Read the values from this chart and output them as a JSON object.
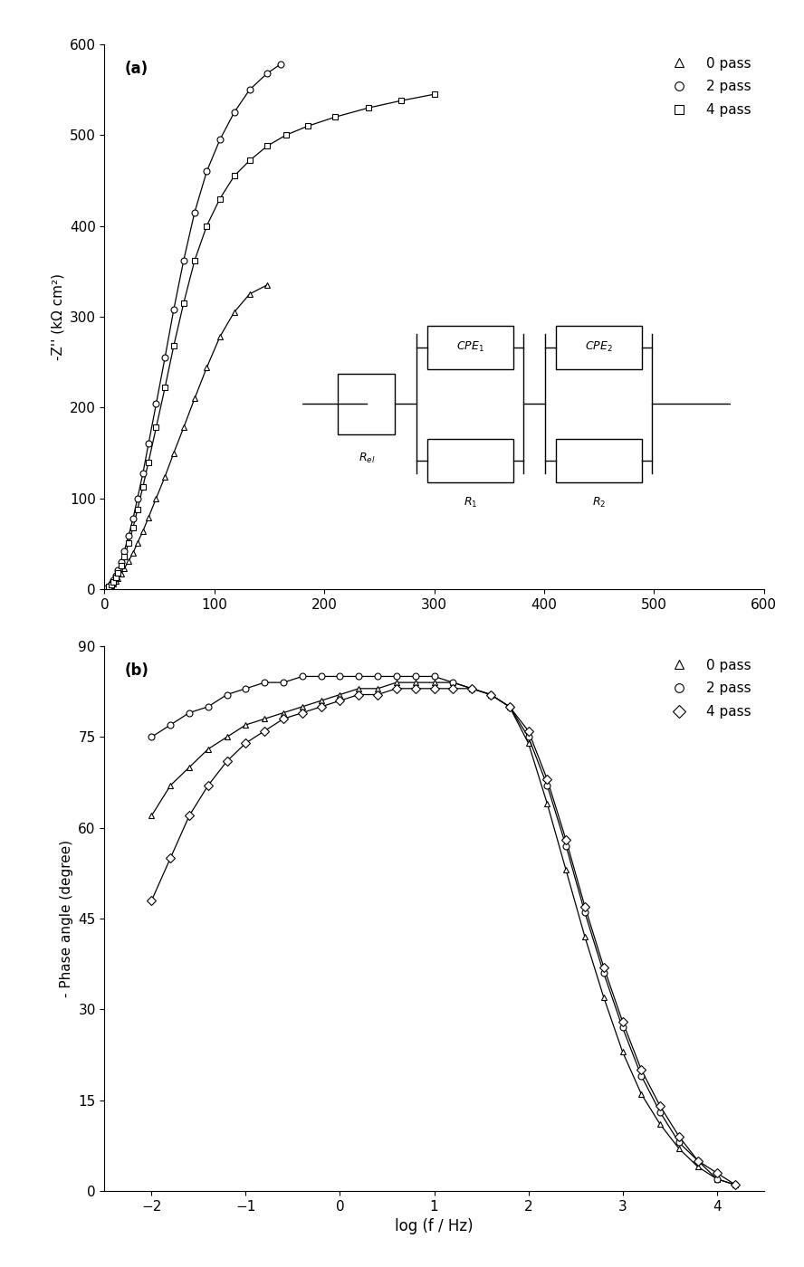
{
  "panel_a": {
    "title": "(a)",
    "ylabel": "-Z'' (kΩ cm²)",
    "xlim": [
      0,
      600
    ],
    "ylim": [
      0,
      600
    ],
    "xticks": [
      0,
      100,
      200,
      300,
      400,
      500,
      600
    ],
    "yticks": [
      0,
      100,
      200,
      300,
      400,
      500,
      600
    ],
    "series": [
      {
        "label": "0 pass",
        "marker": "^",
        "x": [
          0,
          2,
          4,
          6,
          8,
          10,
          12,
          15,
          18,
          22,
          26,
          30,
          35,
          40,
          47,
          55,
          63,
          72,
          82,
          93,
          105,
          118,
          132,
          148
        ],
        "y": [
          0,
          1,
          2,
          4,
          6,
          9,
          12,
          17,
          23,
          31,
          40,
          51,
          64,
          79,
          100,
          124,
          150,
          178,
          210,
          244,
          278,
          305,
          325,
          335
        ]
      },
      {
        "label": "2 pass",
        "marker": "o",
        "x": [
          0,
          2,
          4,
          6,
          8,
          10,
          12,
          15,
          18,
          22,
          26,
          30,
          35,
          40,
          47,
          55,
          63,
          72,
          82,
          93,
          105,
          118,
          132,
          148,
          160
        ],
        "y": [
          0,
          1,
          3,
          6,
          10,
          15,
          21,
          30,
          42,
          59,
          78,
          100,
          128,
          160,
          204,
          255,
          308,
          362,
          415,
          460,
          495,
          525,
          550,
          568,
          578
        ]
      },
      {
        "label": "4 pass",
        "marker": "s",
        "x": [
          0,
          2,
          4,
          6,
          8,
          10,
          12,
          15,
          18,
          22,
          26,
          30,
          35,
          40,
          47,
          55,
          63,
          72,
          82,
          93,
          105,
          118,
          132,
          148,
          165,
          185,
          210,
          240,
          270,
          300
        ],
        "y": [
          0,
          1,
          3,
          5,
          8,
          13,
          18,
          26,
          36,
          51,
          68,
          88,
          113,
          140,
          178,
          222,
          268,
          315,
          362,
          400,
          430,
          455,
          472,
          488,
          500,
          510,
          520,
          530,
          538,
          545
        ]
      }
    ]
  },
  "panel_b": {
    "title": "(b)",
    "xlabel": "log (f / Hz)",
    "ylabel": "- Phase angle (degree)",
    "xlim": [
      -2.5,
      4.5
    ],
    "ylim": [
      0,
      90
    ],
    "xticks": [
      -2,
      -1,
      0,
      1,
      2,
      3,
      4
    ],
    "yticks": [
      0,
      15,
      30,
      45,
      60,
      75,
      90
    ],
    "series": [
      {
        "label": "0 pass",
        "marker": "^",
        "x": [
          -2.0,
          -1.8,
          -1.6,
          -1.4,
          -1.2,
          -1.0,
          -0.8,
          -0.6,
          -0.4,
          -0.2,
          0.0,
          0.2,
          0.4,
          0.6,
          0.8,
          1.0,
          1.2,
          1.4,
          1.6,
          1.8,
          2.0,
          2.2,
          2.4,
          2.6,
          2.8,
          3.0,
          3.2,
          3.4,
          3.6,
          3.8,
          4.0,
          4.2
        ],
        "y": [
          62,
          67,
          70,
          73,
          75,
          77,
          78,
          79,
          80,
          81,
          82,
          83,
          83,
          84,
          84,
          84,
          84,
          83,
          82,
          80,
          74,
          64,
          53,
          42,
          32,
          23,
          16,
          11,
          7,
          4,
          2,
          1
        ]
      },
      {
        "label": "2 pass",
        "marker": "o",
        "x": [
          -2.0,
          -1.8,
          -1.6,
          -1.4,
          -1.2,
          -1.0,
          -0.8,
          -0.6,
          -0.4,
          -0.2,
          0.0,
          0.2,
          0.4,
          0.6,
          0.8,
          1.0,
          1.2,
          1.4,
          1.6,
          1.8,
          2.0,
          2.2,
          2.4,
          2.6,
          2.8,
          3.0,
          3.2,
          3.4,
          3.6,
          3.8,
          4.0,
          4.2
        ],
        "y": [
          75,
          77,
          79,
          80,
          82,
          83,
          84,
          84,
          85,
          85,
          85,
          85,
          85,
          85,
          85,
          85,
          84,
          83,
          82,
          80,
          75,
          67,
          57,
          46,
          36,
          27,
          19,
          13,
          8,
          5,
          2,
          1
        ]
      },
      {
        "label": "4 pass",
        "marker": "D",
        "x": [
          -2.0,
          -1.8,
          -1.6,
          -1.4,
          -1.2,
          -1.0,
          -0.8,
          -0.6,
          -0.4,
          -0.2,
          0.0,
          0.2,
          0.4,
          0.6,
          0.8,
          1.0,
          1.2,
          1.4,
          1.6,
          1.8,
          2.0,
          2.2,
          2.4,
          2.6,
          2.8,
          3.0,
          3.2,
          3.4,
          3.6,
          3.8,
          4.0,
          4.2
        ],
        "y": [
          48,
          55,
          62,
          67,
          71,
          74,
          76,
          78,
          79,
          80,
          81,
          82,
          82,
          83,
          83,
          83,
          83,
          83,
          82,
          80,
          76,
          68,
          58,
          47,
          37,
          28,
          20,
          14,
          9,
          5,
          3,
          1
        ]
      }
    ]
  },
  "background_color": "#ffffff",
  "line_color": "black",
  "marker_facecolor": "white",
  "marker_edgecolor": "black",
  "marker_size": 5,
  "font_size": 11
}
